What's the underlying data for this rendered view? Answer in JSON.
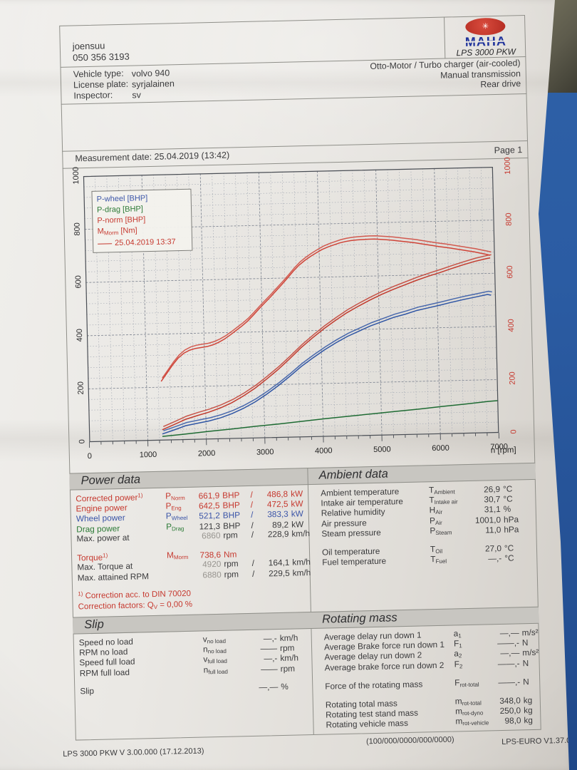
{
  "header": {
    "dealer_line1": "joensuu",
    "dealer_line2": "050 356 3193",
    "brand": "MAHA",
    "device_model": "LPS 3000 PKW"
  },
  "vehicle": {
    "labels": [
      "Vehicle type:",
      "License plate:",
      "Inspector:"
    ],
    "values": [
      "volvo 940",
      "syrjalainen",
      "sv"
    ],
    "config": [
      "Otto-Motor / Turbo charger (air-cooled)",
      "Manual transmission",
      "Rear drive"
    ]
  },
  "measurement": {
    "label": "Measurement date: 25.04.2019 (13:42)",
    "page": "Page 1"
  },
  "chart_data": {
    "type": "line",
    "xlabel": "n [rpm]",
    "xlim": [
      0,
      7000
    ],
    "ylim": [
      0,
      1000
    ],
    "x_ticks": [
      0,
      1000,
      2000,
      3000,
      4000,
      5000,
      6000,
      7000
    ],
    "y_ticks": [
      0,
      200,
      400,
      600,
      800,
      1000
    ],
    "left_axis_color": "#2a2a2c",
    "right_axis_color": "#c6392f",
    "grid": {
      "x_minor": 200,
      "x_major": 1000,
      "y_minor": 40,
      "y_major": 200
    },
    "legend_position": "top-left",
    "legend": [
      {
        "label": "P-wheel [BHP]",
        "color": "#3b55a8"
      },
      {
        "label": "P-drag [BHP]",
        "color": "#2c7a36"
      },
      {
        "label": "P-norm [BHP]",
        "color": "#c6392f"
      },
      {
        "main": "M",
        "sub": "Morm",
        "rest": " [Nm]",
        "color": "#c6392f"
      },
      {
        "label": "25.04.2019 13:37",
        "color": "#c6392f",
        "line_sample": true
      }
    ],
    "series": [
      {
        "name": "P-drag [BHP]",
        "color": "#1e6b33",
        "double": false,
        "points": [
          [
            1250,
            15
          ],
          [
            1650,
            22
          ],
          [
            2050,
            30
          ],
          [
            2450,
            37
          ],
          [
            2850,
            45
          ],
          [
            3250,
            52
          ],
          [
            3650,
            60
          ],
          [
            4050,
            68
          ],
          [
            4450,
            75
          ],
          [
            4850,
            82
          ],
          [
            5250,
            89
          ],
          [
            5650,
            96
          ],
          [
            6050,
            104
          ],
          [
            6450,
            111
          ],
          [
            6850,
            119
          ],
          [
            7000,
            121
          ]
        ]
      },
      {
        "name": "P-wheel [BHP]",
        "color": "#2f55a4",
        "double": true,
        "points": [
          [
            1250,
            24
          ],
          [
            1450,
            38
          ],
          [
            1650,
            53
          ],
          [
            1850,
            61
          ],
          [
            2050,
            69
          ],
          [
            2250,
            80
          ],
          [
            2450,
            95
          ],
          [
            2650,
            114
          ],
          [
            2850,
            137
          ],
          [
            3050,
            165
          ],
          [
            3250,
            196
          ],
          [
            3450,
            230
          ],
          [
            3650,
            266
          ],
          [
            3850,
            297
          ],
          [
            4050,
            326
          ],
          [
            4250,
            352
          ],
          [
            4450,
            375
          ],
          [
            4650,
            394
          ],
          [
            4850,
            413
          ],
          [
            5050,
            428
          ],
          [
            5250,
            443
          ],
          [
            5450,
            454
          ],
          [
            5650,
            467
          ],
          [
            5850,
            476
          ],
          [
            6050,
            485
          ],
          [
            6250,
            495
          ],
          [
            6450,
            504
          ],
          [
            6650,
            512
          ],
          [
            6860,
            521
          ],
          [
            6920,
            518
          ]
        ]
      },
      {
        "name": "P-norm [BHP]",
        "color": "#c23b2e",
        "double": true,
        "points": [
          [
            1250,
            40
          ],
          [
            1450,
            58
          ],
          [
            1650,
            77
          ],
          [
            1850,
            90
          ],
          [
            2050,
            102
          ],
          [
            2250,
            117
          ],
          [
            2450,
            136
          ],
          [
            2650,
            160
          ],
          [
            2850,
            188
          ],
          [
            3050,
            221
          ],
          [
            3250,
            256
          ],
          [
            3450,
            295
          ],
          [
            3650,
            336
          ],
          [
            3850,
            372
          ],
          [
            4050,
            406
          ],
          [
            4250,
            436
          ],
          [
            4450,
            464
          ],
          [
            4650,
            488
          ],
          [
            4850,
            510
          ],
          [
            5050,
            530
          ],
          [
            5250,
            548
          ],
          [
            5450,
            564
          ],
          [
            5650,
            580
          ],
          [
            5850,
            594
          ],
          [
            6050,
            607
          ],
          [
            6250,
            621
          ],
          [
            6450,
            634
          ],
          [
            6650,
            646
          ],
          [
            6860,
            656
          ],
          [
            6920,
            658
          ]
        ]
      },
      {
        "name": "M_Morm [Nm]",
        "color": "#cf4337",
        "double": true,
        "points": [
          [
            1250,
            222
          ],
          [
            1350,
            252
          ],
          [
            1450,
            282
          ],
          [
            1550,
            308
          ],
          [
            1650,
            326
          ],
          [
            1750,
            337
          ],
          [
            1850,
            343
          ],
          [
            1950,
            346
          ],
          [
            2050,
            349
          ],
          [
            2150,
            355
          ],
          [
            2250,
            364
          ],
          [
            2350,
            376
          ],
          [
            2450,
            391
          ],
          [
            2550,
            407
          ],
          [
            2650,
            423
          ],
          [
            2750,
            441
          ],
          [
            2850,
            463
          ],
          [
            2950,
            486
          ],
          [
            3050,
            508
          ],
          [
            3150,
            530
          ],
          [
            3250,
            553
          ],
          [
            3350,
            576
          ],
          [
            3450,
            600
          ],
          [
            3550,
            625
          ],
          [
            3650,
            647
          ],
          [
            3750,
            664
          ],
          [
            3850,
            679
          ],
          [
            3950,
            692
          ],
          [
            4050,
            704
          ],
          [
            4150,
            713
          ],
          [
            4250,
            720
          ],
          [
            4350,
            727
          ],
          [
            4450,
            732
          ],
          [
            4550,
            735
          ],
          [
            4650,
            737
          ],
          [
            4750,
            738
          ],
          [
            4850,
            739
          ],
          [
            4950,
            739
          ],
          [
            5050,
            737
          ],
          [
            5150,
            735
          ],
          [
            5250,
            733
          ],
          [
            5350,
            730
          ],
          [
            5450,
            727
          ],
          [
            5550,
            724
          ],
          [
            5650,
            721
          ],
          [
            5750,
            717
          ],
          [
            5850,
            713
          ],
          [
            5950,
            709
          ],
          [
            6050,
            705
          ],
          [
            6150,
            702
          ],
          [
            6250,
            698
          ],
          [
            6350,
            694
          ],
          [
            6450,
            690
          ],
          [
            6550,
            686
          ],
          [
            6650,
            682
          ],
          [
            6750,
            677
          ],
          [
            6850,
            672
          ],
          [
            6920,
            668
          ]
        ]
      }
    ]
  },
  "power_data": {
    "title": "Power data",
    "rows": [
      {
        "label": "Corrected power",
        "sup": "1)",
        "sym": "P",
        "sub": "Norm",
        "v1": "661,9",
        "u1": "BHP",
        "sep": "/",
        "v2": "486,8",
        "u2": "kW",
        "cls": "red"
      },
      {
        "label": "Engine power",
        "sym": "P",
        "sub": "Eng",
        "v1": "642,5",
        "u1": "BHP",
        "sep": "/",
        "v2": "472,5",
        "u2": "kW",
        "cls": "red"
      },
      {
        "label": "Wheel power",
        "sym": "P",
        "sub": "Wheel",
        "v1": "521,2",
        "u1": "BHP",
        "sep": "/",
        "v2": "383,3",
        "u2": "kW",
        "cls": "blue"
      },
      {
        "label": "Drag power",
        "sym": "P",
        "sub": "Drag",
        "v1": "121,3",
        "u1": "BHP",
        "sep": "/",
        "v2": "89,2",
        "u2": "kW",
        "cls": "green-label"
      },
      {
        "label": "Max. power at",
        "v1": "6860",
        "u1": "rpm",
        "sep": "/",
        "v2": "228,9",
        "u2": "km/h",
        "cls": "black",
        "muted1": true
      },
      {
        "gap": true
      },
      {
        "label": "Torque",
        "sup": "1)",
        "sym": "M",
        "sub": "Morm",
        "v1": "738,6",
        "u1": "Nm",
        "cls": "red"
      },
      {
        "label": "Max. Torque at",
        "v1": "4920",
        "u1": "rpm",
        "sep": "/",
        "v2": "164,1",
        "u2": "km/h",
        "cls": "black",
        "muted1": true
      },
      {
        "label": "Max. attained RPM",
        "v1": "6880",
        "u1": "rpm",
        "sep": "/",
        "v2": "229,5",
        "u2": "km/h",
        "cls": "black",
        "muted1": true
      }
    ],
    "notes": [
      [
        {
          "t": "1)",
          "s": "sup"
        },
        {
          "t": " Correction acc. to DIN 70020",
          "s": "n"
        }
      ],
      [
        {
          "t": "Correction factors: Q",
          "s": "n"
        },
        {
          "t": "V",
          "s": "sub"
        },
        {
          "t": " =  0,00 %",
          "s": "n"
        }
      ]
    ]
  },
  "ambient_data": {
    "title": "Ambient data",
    "rows": [
      {
        "label": "Ambient temperature",
        "sym": "T",
        "sub": "Ambient",
        "v1": "26,9",
        "u1": "°C",
        "cls": "black"
      },
      {
        "label": "Intake air temperature",
        "sym": "T",
        "sub": "Intake air",
        "v1": "30,7",
        "u1": "°C",
        "cls": "black"
      },
      {
        "label": "Relative humidity",
        "sym": "H",
        "sub": "Air",
        "v1": "31,1",
        "u1": "%",
        "cls": "black"
      },
      {
        "label": "Air pressure",
        "sym": "P",
        "sub": "Air",
        "v1": "1001,0",
        "u1": "hPa",
        "cls": "black"
      },
      {
        "label": "Steam pressure",
        "sym": "P",
        "sub": "Steam",
        "v1": "11,0",
        "u1": "hPa",
        "cls": "black"
      },
      {
        "gap": true
      },
      {
        "label": "Oil temperature",
        "sym": "T",
        "sub": "Oil",
        "v1": "27,0",
        "u1": "°C",
        "cls": "black"
      },
      {
        "label": "Fuel temperature",
        "sym": "T",
        "sub": "Fuel",
        "v1": "—,-",
        "u1": "°C",
        "cls": "black"
      }
    ]
  },
  "slip": {
    "title": "Slip",
    "rows": [
      {
        "label": "Speed no load",
        "sym": "v",
        "sub": "no load",
        "v1": "—,-",
        "u1": "km/h",
        "cls": "black"
      },
      {
        "label": "RPM no load",
        "sym": "n",
        "sub": "no load",
        "v1": "——",
        "u1": "rpm",
        "cls": "black"
      },
      {
        "label": "Speed full load",
        "sym": "v",
        "sub": "full load",
        "v1": "—,-",
        "u1": "km/h",
        "cls": "black"
      },
      {
        "label": "RPM full load",
        "sym": "n",
        "sub": "full load",
        "v1": "——",
        "u1": "rpm",
        "cls": "black"
      },
      {
        "gap": true
      },
      {
        "label": "Slip",
        "v1": "—,—",
        "u1": "%",
        "cls": "black"
      }
    ]
  },
  "rotating_mass": {
    "title": "Rotating mass",
    "rows": [
      {
        "label": "Average delay run down 1",
        "sym": "a",
        "sub": "1",
        "v1": "—,—",
        "u1": "m/s²",
        "cls": "black"
      },
      {
        "label": "Average Brake force run down 1",
        "sym": "F",
        "sub": "1",
        "v1": "——,-",
        "u1": "N",
        "cls": "black"
      },
      {
        "label": "Average delay run down 2",
        "sym": "a",
        "sub": "2",
        "v1": "—,—",
        "u1": "m/s²",
        "cls": "black"
      },
      {
        "label": "Average brake force run down 2",
        "sym": "F",
        "sub": "2",
        "v1": "——,-",
        "u1": "N",
        "cls": "black"
      },
      {
        "gap": true
      },
      {
        "label": "Force of the rotating mass",
        "sym": "F",
        "sub": "rot-total",
        "v1": "——,-",
        "u1": "N",
        "cls": "black"
      },
      {
        "gap": true
      },
      {
        "label": "Rotating total mass",
        "sym": "m",
        "sub": "rot-total",
        "v1": "348,0",
        "u1": "kg",
        "cls": "black"
      },
      {
        "label": "Rotating test stand mass",
        "sym": "m",
        "sub": "rot-dyno",
        "v1": "250,0",
        "u1": "kg",
        "cls": "black"
      },
      {
        "label": "Rotating vehicle mass",
        "sym": "m",
        "sub": "rot-vehicle",
        "v1": "98,0",
        "u1": "kg",
        "cls": "black"
      }
    ]
  },
  "footer": {
    "left": "LPS 3000 PKW V 3.00.000 (17.12.2013)",
    "center": "(100/000/0000/000/0000)",
    "right": "LPS-EURO V1.37.010"
  },
  "colors": {
    "accent_red": "#c6392f",
    "accent_blue": "#3b55a8",
    "accent_green": "#2c7a36",
    "paper": "#e8e6e2",
    "desk": "#5d5b4c",
    "table_blue": "#2b5ca3"
  }
}
